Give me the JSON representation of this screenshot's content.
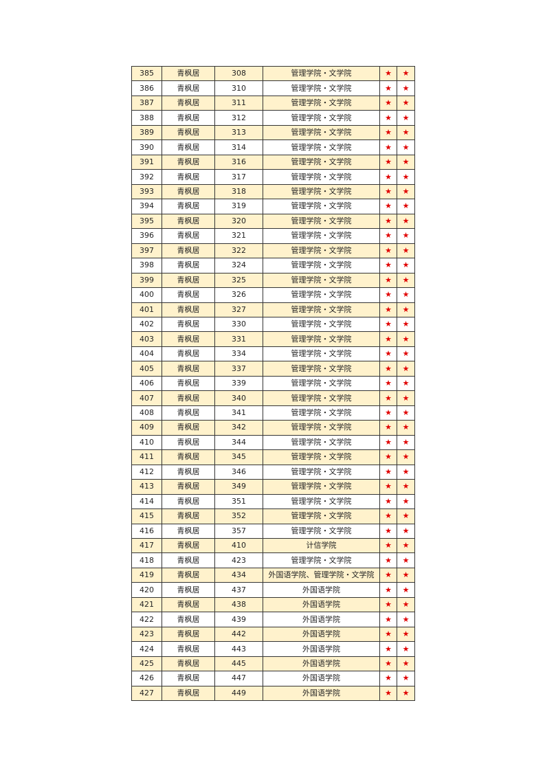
{
  "star_color": "#e00000",
  "row_alt_color": "#fff2cc",
  "star_icon": "★",
  "rows": [
    [
      "385",
      "青枫居",
      "308",
      "管理学院・文学院"
    ],
    [
      "386",
      "青枫居",
      "310",
      "管理学院・文学院"
    ],
    [
      "387",
      "青枫居",
      "311",
      "管理学院・文学院"
    ],
    [
      "388",
      "青枫居",
      "312",
      "管理学院・文学院"
    ],
    [
      "389",
      "青枫居",
      "313",
      "管理学院・文学院"
    ],
    [
      "390",
      "青枫居",
      "314",
      "管理学院・文学院"
    ],
    [
      "391",
      "青枫居",
      "316",
      "管理学院・文学院"
    ],
    [
      "392",
      "青枫居",
      "317",
      "管理学院・文学院"
    ],
    [
      "393",
      "青枫居",
      "318",
      "管理学院・文学院"
    ],
    [
      "394",
      "青枫居",
      "319",
      "管理学院・文学院"
    ],
    [
      "395",
      "青枫居",
      "320",
      "管理学院・文学院"
    ],
    [
      "396",
      "青枫居",
      "321",
      "管理学院・文学院"
    ],
    [
      "397",
      "青枫居",
      "322",
      "管理学院・文学院"
    ],
    [
      "398",
      "青枫居",
      "324",
      "管理学院・文学院"
    ],
    [
      "399",
      "青枫居",
      "325",
      "管理学院・文学院"
    ],
    [
      "400",
      "青枫居",
      "326",
      "管理学院・文学院"
    ],
    [
      "401",
      "青枫居",
      "327",
      "管理学院・文学院"
    ],
    [
      "402",
      "青枫居",
      "330",
      "管理学院・文学院"
    ],
    [
      "403",
      "青枫居",
      "331",
      "管理学院・文学院"
    ],
    [
      "404",
      "青枫居",
      "334",
      "管理学院・文学院"
    ],
    [
      "405",
      "青枫居",
      "337",
      "管理学院・文学院"
    ],
    [
      "406",
      "青枫居",
      "339",
      "管理学院・文学院"
    ],
    [
      "407",
      "青枫居",
      "340",
      "管理学院・文学院"
    ],
    [
      "408",
      "青枫居",
      "341",
      "管理学院・文学院"
    ],
    [
      "409",
      "青枫居",
      "342",
      "管理学院・文学院"
    ],
    [
      "410",
      "青枫居",
      "344",
      "管理学院・文学院"
    ],
    [
      "411",
      "青枫居",
      "345",
      "管理学院・文学院"
    ],
    [
      "412",
      "青枫居",
      "346",
      "管理学院・文学院"
    ],
    [
      "413",
      "青枫居",
      "349",
      "管理学院・文学院"
    ],
    [
      "414",
      "青枫居",
      "351",
      "管理学院・文学院"
    ],
    [
      "415",
      "青枫居",
      "352",
      "管理学院・文学院"
    ],
    [
      "416",
      "青枫居",
      "357",
      "管理学院・文学院"
    ],
    [
      "417",
      "青枫居",
      "410",
      "计信学院"
    ],
    [
      "418",
      "青枫居",
      "423",
      "管理学院・文学院"
    ],
    [
      "419",
      "青枫居",
      "434",
      "外国语学院、管理学院・文学院"
    ],
    [
      "420",
      "青枫居",
      "437",
      "外国语学院"
    ],
    [
      "421",
      "青枫居",
      "438",
      "外国语学院"
    ],
    [
      "422",
      "青枫居",
      "439",
      "外国语学院"
    ],
    [
      "423",
      "青枫居",
      "442",
      "外国语学院"
    ],
    [
      "424",
      "青枫居",
      "443",
      "外国语学院"
    ],
    [
      "425",
      "青枫居",
      "445",
      "外国语学院"
    ],
    [
      "426",
      "青枫居",
      "447",
      "外国语学院"
    ],
    [
      "427",
      "青枫居",
      "449",
      "外国语学院"
    ]
  ]
}
